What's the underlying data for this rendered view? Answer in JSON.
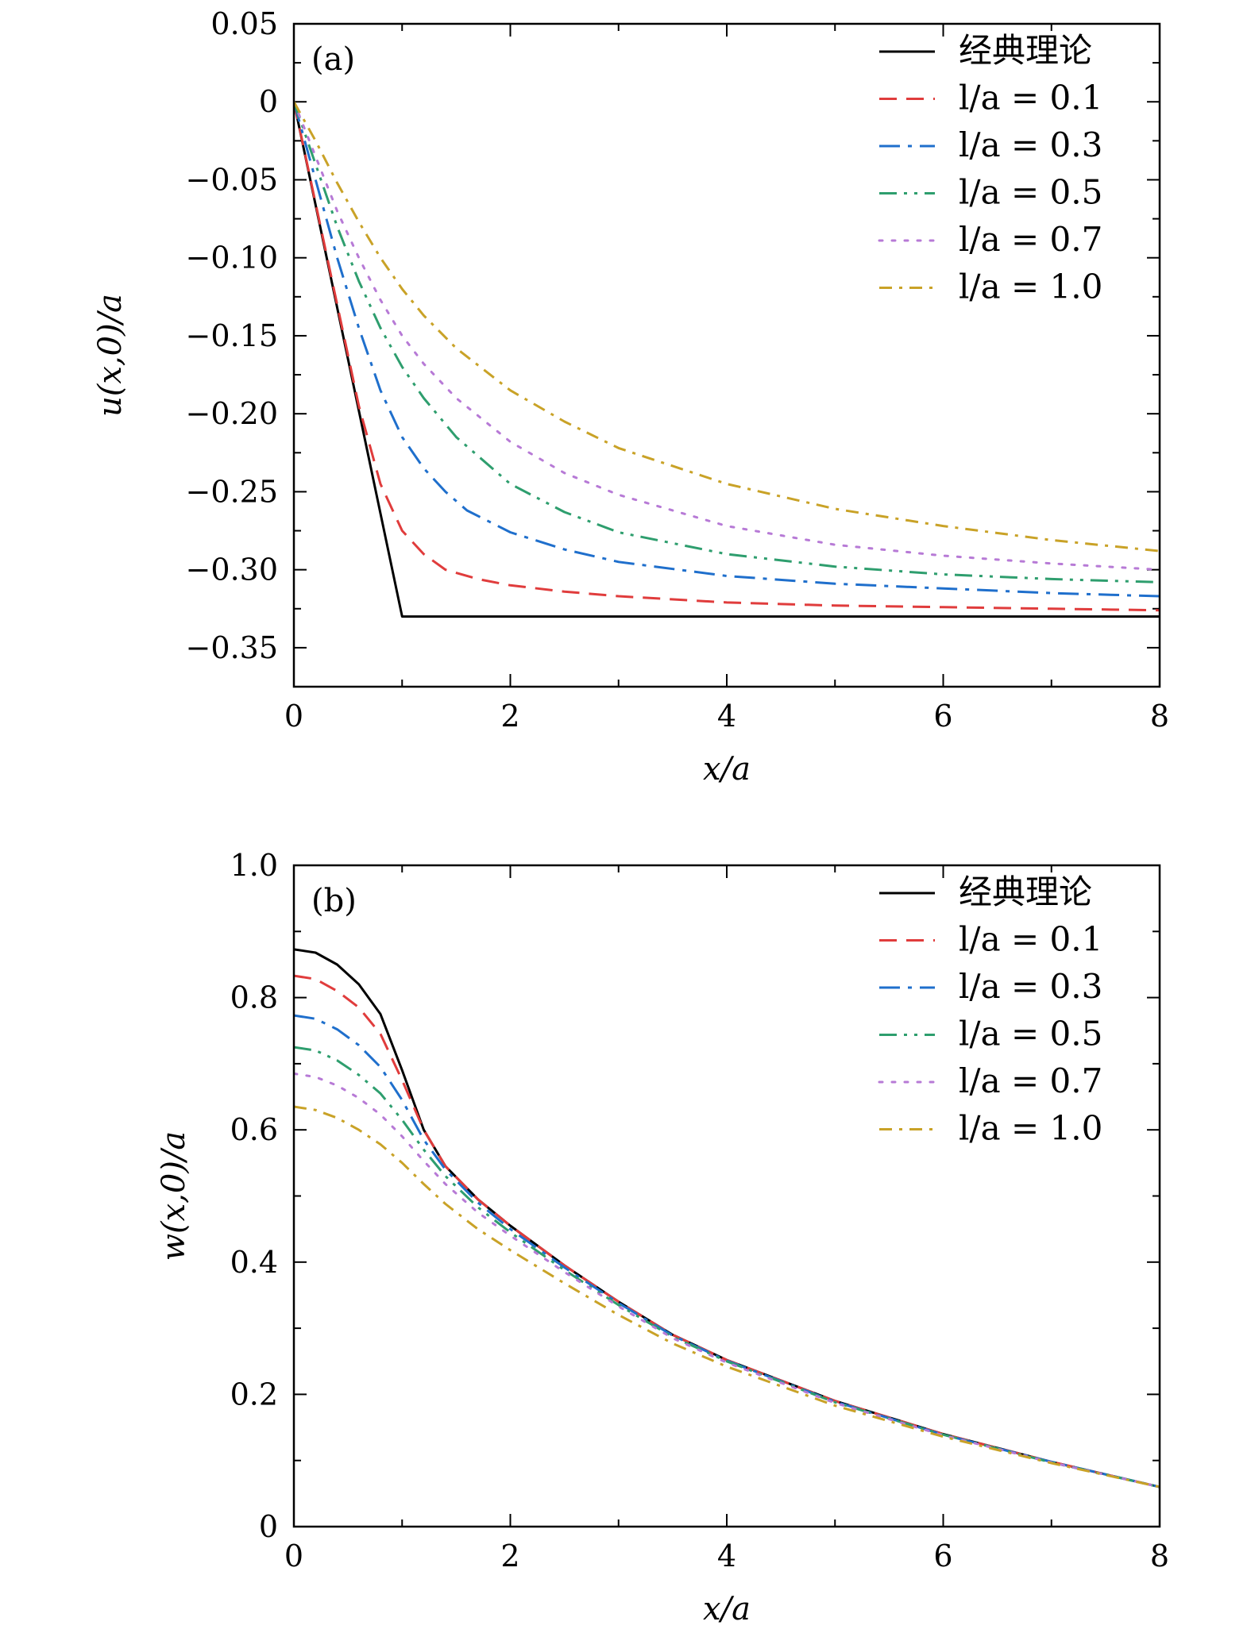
{
  "chart_data": [
    {
      "type": "line",
      "panel_label": "(a)",
      "xlabel": "x/a",
      "ylabel": "u(x,0)/a",
      "xlim": [
        0,
        8
      ],
      "ylim": [
        -0.375,
        0.05
      ],
      "xticks": [
        0,
        2,
        4,
        6,
        8
      ],
      "xtick_labels": [
        "0",
        "2",
        "4",
        "6",
        "8"
      ],
      "yticks": [
        0.05,
        0,
        -0.05,
        -0.1,
        -0.15,
        -0.2,
        -0.25,
        -0.3,
        -0.35
      ],
      "ytick_labels": [
        "0.05",
        "0",
        "−0.05",
        "−0.10",
        "−0.15",
        "−0.20",
        "−0.25",
        "−0.30",
        "−0.35"
      ],
      "legend_position": "top-right",
      "series": [
        {
          "name": "经典理论",
          "color": "#000000",
          "dash": "solid",
          "x": [
            0,
            1,
            1.5,
            2,
            3,
            4,
            5,
            6,
            7,
            8
          ],
          "y": [
            0,
            -0.33,
            -0.33,
            -0.33,
            -0.33,
            -0.33,
            -0.33,
            -0.33,
            -0.33,
            -0.33
          ]
        },
        {
          "name": "l/a = 0.1",
          "color": "#e03c3c",
          "dash": "dashed",
          "x": [
            0,
            0.2,
            0.4,
            0.6,
            0.8,
            1.0,
            1.2,
            1.4,
            1.7,
            2.0,
            2.5,
            3.0,
            4.0,
            5.0,
            6.0,
            7.0,
            8.0
          ],
          "y": [
            0,
            -0.065,
            -0.13,
            -0.195,
            -0.245,
            -0.275,
            -0.29,
            -0.3,
            -0.306,
            -0.31,
            -0.314,
            -0.317,
            -0.321,
            -0.323,
            -0.324,
            -0.325,
            -0.326
          ]
        },
        {
          "name": "l/a = 0.3",
          "color": "#1f6fcc",
          "dash": "dashdot",
          "x": [
            0,
            0.2,
            0.4,
            0.6,
            0.8,
            1.0,
            1.2,
            1.4,
            1.6,
            2.0,
            2.5,
            3.0,
            4.0,
            5.0,
            6.0,
            7.0,
            8.0
          ],
          "y": [
            0,
            -0.05,
            -0.1,
            -0.145,
            -0.185,
            -0.215,
            -0.235,
            -0.25,
            -0.262,
            -0.276,
            -0.287,
            -0.295,
            -0.304,
            -0.309,
            -0.312,
            -0.315,
            -0.317
          ]
        },
        {
          "name": "l/a = 0.5",
          "color": "#2e9e6e",
          "dash": "dashdotdot",
          "x": [
            0,
            0.2,
            0.4,
            0.6,
            0.8,
            1.0,
            1.2,
            1.5,
            2.0,
            2.5,
            3.0,
            4.0,
            5.0,
            6.0,
            7.0,
            8.0
          ],
          "y": [
            0,
            -0.04,
            -0.08,
            -0.115,
            -0.145,
            -0.17,
            -0.19,
            -0.215,
            -0.245,
            -0.263,
            -0.276,
            -0.29,
            -0.298,
            -0.303,
            -0.306,
            -0.308
          ]
        },
        {
          "name": "l/a = 0.7",
          "color": "#b77ad6",
          "dash": "dotted",
          "x": [
            0,
            0.2,
            0.4,
            0.6,
            0.8,
            1.0,
            1.2,
            1.5,
            2.0,
            2.5,
            3.0,
            4.0,
            5.0,
            6.0,
            7.0,
            8.0
          ],
          "y": [
            0,
            -0.035,
            -0.07,
            -0.1,
            -0.127,
            -0.15,
            -0.168,
            -0.19,
            -0.218,
            -0.238,
            -0.252,
            -0.272,
            -0.284,
            -0.291,
            -0.296,
            -0.3
          ]
        },
        {
          "name": "l/a = 1.0",
          "color": "#c9a227",
          "dash": "dashdotlong",
          "x": [
            0,
            0.2,
            0.4,
            0.6,
            0.8,
            1.0,
            1.2,
            1.5,
            2.0,
            2.5,
            3.0,
            4.0,
            5.0,
            6.0,
            7.0,
            8.0
          ],
          "y": [
            0,
            -0.025,
            -0.052,
            -0.077,
            -0.1,
            -0.12,
            -0.137,
            -0.158,
            -0.185,
            -0.205,
            -0.222,
            -0.245,
            -0.261,
            -0.272,
            -0.281,
            -0.288
          ]
        }
      ]
    },
    {
      "type": "line",
      "panel_label": "(b)",
      "xlabel": "x/a",
      "ylabel": "w(x,0)/a",
      "xlim": [
        0,
        8
      ],
      "ylim": [
        0,
        1.0
      ],
      "xticks": [
        0,
        2,
        4,
        6,
        8
      ],
      "xtick_labels": [
        "0",
        "2",
        "4",
        "6",
        "8"
      ],
      "yticks": [
        0,
        0.2,
        0.4,
        0.6,
        0.8,
        1.0
      ],
      "ytick_labels": [
        "0",
        "0.2",
        "0.4",
        "0.6",
        "0.8",
        "1.0"
      ],
      "legend_position": "top-right",
      "series": [
        {
          "name": "经典理论",
          "color": "#000000",
          "dash": "solid",
          "x": [
            0,
            0.2,
            0.4,
            0.6,
            0.8,
            1.0,
            1.2,
            1.4,
            1.7,
            2.0,
            2.5,
            3.0,
            3.5,
            4.0,
            5.0,
            6.0,
            7.0,
            8.0
          ],
          "y": [
            0.873,
            0.868,
            0.85,
            0.82,
            0.775,
            0.69,
            0.6,
            0.545,
            0.495,
            0.455,
            0.395,
            0.34,
            0.29,
            0.252,
            0.19,
            0.14,
            0.098,
            0.06
          ]
        },
        {
          "name": "l/a = 0.1",
          "color": "#e03c3c",
          "dash": "dashed",
          "x": [
            0,
            0.2,
            0.4,
            0.6,
            0.8,
            1.0,
            1.2,
            1.4,
            1.7,
            2.0,
            2.5,
            3.0,
            3.5,
            4.0,
            5.0,
            6.0,
            7.0,
            8.0
          ],
          "y": [
            0.833,
            0.828,
            0.81,
            0.785,
            0.745,
            0.675,
            0.6,
            0.545,
            0.495,
            0.455,
            0.395,
            0.34,
            0.29,
            0.252,
            0.19,
            0.14,
            0.098,
            0.06
          ]
        },
        {
          "name": "l/a = 0.3",
          "color": "#1f6fcc",
          "dash": "dashdot",
          "x": [
            0,
            0.2,
            0.4,
            0.6,
            0.8,
            1.0,
            1.2,
            1.4,
            1.7,
            2.0,
            2.5,
            3.0,
            3.5,
            4.0,
            5.0,
            6.0,
            7.0,
            8.0
          ],
          "y": [
            0.773,
            0.768,
            0.752,
            0.728,
            0.695,
            0.645,
            0.585,
            0.54,
            0.49,
            0.45,
            0.392,
            0.338,
            0.289,
            0.251,
            0.189,
            0.139,
            0.098,
            0.06
          ]
        },
        {
          "name": "l/a = 0.5",
          "color": "#2e9e6e",
          "dash": "dashdotdot",
          "x": [
            0,
            0.2,
            0.4,
            0.6,
            0.8,
            1.0,
            1.2,
            1.4,
            1.7,
            2.0,
            2.5,
            3.0,
            3.5,
            4.0,
            5.0,
            6.0,
            7.0,
            8.0
          ],
          "y": [
            0.725,
            0.72,
            0.705,
            0.683,
            0.655,
            0.615,
            0.57,
            0.53,
            0.483,
            0.445,
            0.388,
            0.335,
            0.287,
            0.25,
            0.188,
            0.139,
            0.097,
            0.06
          ]
        },
        {
          "name": "l/a = 0.7",
          "color": "#b77ad6",
          "dash": "dotted",
          "x": [
            0,
            0.2,
            0.4,
            0.6,
            0.8,
            1.0,
            1.2,
            1.4,
            1.7,
            2.0,
            2.5,
            3.0,
            3.5,
            4.0,
            5.0,
            6.0,
            7.0,
            8.0
          ],
          "y": [
            0.685,
            0.68,
            0.667,
            0.648,
            0.623,
            0.59,
            0.553,
            0.518,
            0.475,
            0.44,
            0.385,
            0.333,
            0.285,
            0.248,
            0.187,
            0.138,
            0.097,
            0.06
          ]
        },
        {
          "name": "l/a = 1.0",
          "color": "#c9a227",
          "dash": "dashdotlong",
          "x": [
            0,
            0.2,
            0.4,
            0.6,
            0.8,
            1.0,
            1.2,
            1.4,
            1.7,
            2.0,
            2.5,
            3.0,
            3.5,
            4.0,
            5.0,
            6.0,
            7.0,
            8.0
          ],
          "y": [
            0.635,
            0.63,
            0.618,
            0.6,
            0.578,
            0.55,
            0.518,
            0.488,
            0.45,
            0.418,
            0.368,
            0.32,
            0.277,
            0.242,
            0.183,
            0.136,
            0.096,
            0.06
          ]
        }
      ]
    }
  ]
}
